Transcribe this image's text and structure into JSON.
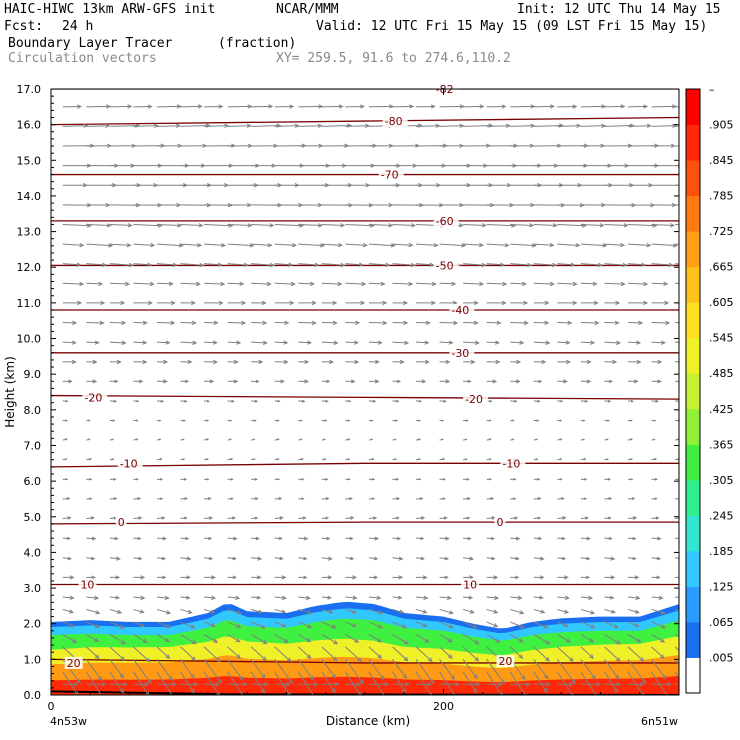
{
  "header": {
    "model": "HAIC-HIWC 13km ARW-GFS init",
    "org": "NCAR/MMM",
    "init": "Init: 12 UTC Thu 14 May 15",
    "fcst_label": "Fcst:",
    "fcst_value": "24 h",
    "valid": "Valid: 12 UTC Fri 15 May 15 (09 LST Fri 15 May 15)",
    "field": "Boundary Layer Tracer",
    "field_units": "(fraction)",
    "vectors": "Circulation vectors",
    "xy": "XY= 259.5, 91.6 to 274.6,110.2"
  },
  "colors": {
    "contour": "#7a0000",
    "vector": "#808080",
    "tracer_scale": [
      "#ffffff",
      "#1a6ef0",
      "#2a9cff",
      "#30c8ff",
      "#32e6d2",
      "#2cf08c",
      "#40f040",
      "#90f038",
      "#c8f032",
      "#f0f028",
      "#ffe020",
      "#ffc21a",
      "#ffa014",
      "#ff7a10",
      "#ff500c",
      "#ff2808",
      "#ff0000"
    ]
  },
  "chart_data": {
    "type": "heatmap",
    "title": "Boundary Layer Tracer",
    "units": "(fraction)",
    "xlabel": "Distance (km)",
    "ylabel": "Height (km)",
    "xlim": [
      0,
      320
    ],
    "ylim": [
      0,
      17
    ],
    "x_ticks": [
      {
        "value": 0,
        "label": "0"
      },
      {
        "value": 200,
        "label": "200"
      }
    ],
    "x_end_labels": {
      "left": "4n53w",
      "right": "6n51w"
    },
    "y_ticks": [
      "0.0",
      "1.0",
      "2.0",
      "3.0",
      "4.0",
      "5.0",
      "6.0",
      "7.0",
      "8.0",
      "9.0",
      "10.0",
      "11.0",
      "12.0",
      "13.0",
      "14.0",
      "15.0",
      "16.0",
      "17.0"
    ],
    "colorbar_labels": [
      "–",
      ".905",
      ".845",
      ".785",
      ".725",
      ".665",
      ".605",
      ".545",
      ".485",
      ".425",
      ".365",
      ".305",
      ".245",
      ".185",
      ".125",
      ".065",
      ".005"
    ],
    "boundary_layer_top_km": [
      {
        "x": 0,
        "y": 2.05
      },
      {
        "x": 20,
        "y": 2.1
      },
      {
        "x": 40,
        "y": 2.05
      },
      {
        "x": 60,
        "y": 2.05
      },
      {
        "x": 80,
        "y": 2.3
      },
      {
        "x": 90,
        "y": 2.6
      },
      {
        "x": 100,
        "y": 2.35
      },
      {
        "x": 120,
        "y": 2.3
      },
      {
        "x": 135,
        "y": 2.5
      },
      {
        "x": 150,
        "y": 2.62
      },
      {
        "x": 165,
        "y": 2.55
      },
      {
        "x": 180,
        "y": 2.3
      },
      {
        "x": 200,
        "y": 2.2
      },
      {
        "x": 215,
        "y": 2.0
      },
      {
        "x": 230,
        "y": 1.85
      },
      {
        "x": 245,
        "y": 2.05
      },
      {
        "x": 260,
        "y": 2.15
      },
      {
        "x": 280,
        "y": 2.2
      },
      {
        "x": 300,
        "y": 2.2
      },
      {
        "x": 320,
        "y": 2.55
      }
    ],
    "tracer_layers": [
      {
        "level": 0.065,
        "color": "#1a6ef0"
      },
      {
        "level": 0.125,
        "color": "#30c8ff"
      },
      {
        "level": 0.245,
        "color": "#40f040"
      },
      {
        "level": 0.425,
        "color": "#f0f028"
      },
      {
        "level": 0.665,
        "color": "#ff9a14"
      },
      {
        "level": 0.905,
        "color": "#ff2808"
      }
    ],
    "temperature_contours": [
      {
        "value": "20",
        "heights": [
          1.0,
          0.9,
          0.9
        ]
      },
      {
        "value": "10",
        "heights": [
          3.1,
          3.1,
          3.1
        ]
      },
      {
        "value": "0",
        "heights": [
          4.8,
          4.85,
          4.85
        ]
      },
      {
        "value": "-10",
        "heights": [
          6.4,
          6.5,
          6.5
        ]
      },
      {
        "value": "-20",
        "heights": [
          8.4,
          8.35,
          8.3
        ]
      },
      {
        "value": "-30",
        "heights": [
          9.6,
          9.6,
          9.6
        ]
      },
      {
        "value": "-40",
        "heights": [
          10.8,
          10.8,
          10.8
        ]
      },
      {
        "value": "-50",
        "heights": [
          12.05,
          12.05,
          12.05
        ]
      },
      {
        "value": "-60",
        "heights": [
          13.3,
          13.3,
          13.3
        ]
      },
      {
        "value": "-70",
        "heights": [
          14.6,
          14.6,
          14.6
        ]
      },
      {
        "value": "-80",
        "heights": [
          16.0,
          16.1,
          16.2
        ]
      },
      {
        "value": "-82",
        "heights": [
          17.0,
          17.0,
          17.0
        ]
      }
    ],
    "temperature_contour_labels": [
      {
        "value": "20",
        "x": 8,
        "y": 0.9
      },
      {
        "value": "20",
        "x": 228,
        "y": 0.95
      },
      {
        "value": "10",
        "x": 15,
        "y": 3.1
      },
      {
        "value": "10",
        "x": 210,
        "y": 3.1
      },
      {
        "value": "0",
        "x": 34,
        "y": 4.85
      },
      {
        "value": "0",
        "x": 227,
        "y": 4.85
      },
      {
        "value": "-10",
        "x": 35,
        "y": 6.5
      },
      {
        "value": "-10",
        "x": 230,
        "y": 6.5
      },
      {
        "value": "-20",
        "x": 17,
        "y": 8.35
      },
      {
        "value": "-20",
        "x": 211,
        "y": 8.3
      },
      {
        "value": "-30",
        "x": 204,
        "y": 9.6
      },
      {
        "value": "-40",
        "x": 204,
        "y": 10.8
      },
      {
        "value": "-50",
        "x": 196,
        "y": 12.05
      },
      {
        "value": "-60",
        "x": 196,
        "y": 13.3
      },
      {
        "value": "-70",
        "x": 168,
        "y": 14.6
      },
      {
        "value": "-80",
        "x": 170,
        "y": 16.1
      },
      {
        "value": "-82",
        "x": 196,
        "y": 17.0
      }
    ],
    "wind_profile": [
      {
        "z": 0.5,
        "u": 0.55,
        "v": -0.9
      },
      {
        "z": 1.0,
        "u": 0.55,
        "v": -0.75
      },
      {
        "z": 1.5,
        "u": 0.5,
        "v": -0.35
      },
      {
        "z": 2.0,
        "u": 0.45,
        "v": -0.2
      },
      {
        "z": 2.5,
        "u": 0.4,
        "v": -0.1
      },
      {
        "z": 3.0,
        "u": 0.35,
        "v": 0.02
      },
      {
        "z": 4.0,
        "u": 0.3,
        "v": -0.05
      },
      {
        "z": 5.0,
        "u": 0.25,
        "v": 0.03
      },
      {
        "z": 6.0,
        "u": 0.18,
        "v": 0.0
      },
      {
        "z": 7.0,
        "u": 0.12,
        "v": 0.04
      },
      {
        "z": 8.0,
        "u": 0.15,
        "v": -0.02
      },
      {
        "z": 9.0,
        "u": 0.35,
        "v": 0.0
      },
      {
        "z": 10.0,
        "u": 0.5,
        "v": -0.03
      },
      {
        "z": 11.0,
        "u": 0.6,
        "v": 0.0
      },
      {
        "z": 12.0,
        "u": 0.7,
        "v": -0.05
      },
      {
        "z": 13.0,
        "u": 0.85,
        "v": -0.05
      },
      {
        "z": 14.0,
        "u": 1.0,
        "v": 0.0
      },
      {
        "z": 15.0,
        "u": 1.0,
        "v": 0.0
      },
      {
        "z": 16.0,
        "u": 0.9,
        "v": 0.03
      },
      {
        "z": 17.0,
        "u": 0.6,
        "v": 0.0
      }
    ]
  }
}
